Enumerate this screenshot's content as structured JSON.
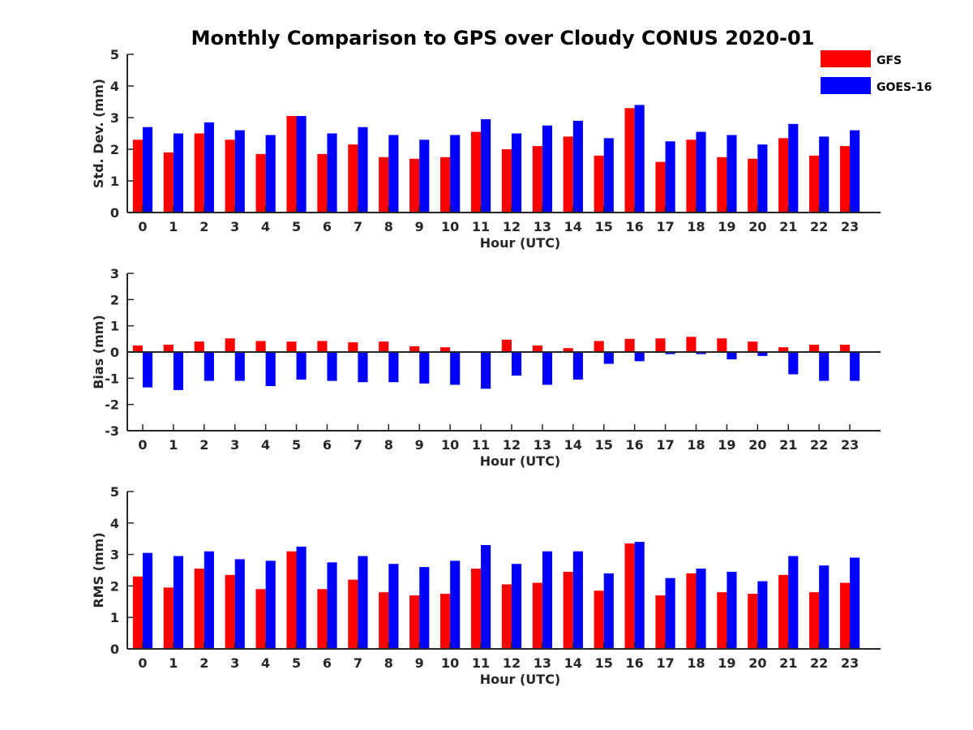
{
  "title": "Monthly Comparison to GPS over Cloudy CONUS 2020-01",
  "colors": {
    "GFS": "#ff0000",
    "GOES-16": "#0000ff",
    "axis": "#262626"
  },
  "legend": {
    "position": "top-right",
    "items": [
      "GFS",
      "GOES-16"
    ]
  },
  "chart_data": [
    {
      "type": "bar",
      "ylabel": "Std. Dev. (mm)",
      "xlabel": "Hour (UTC)",
      "ylim": [
        0,
        5
      ],
      "yticks": [
        0,
        1,
        2,
        3,
        4,
        5
      ],
      "categories": [
        "0",
        "1",
        "2",
        "3",
        "4",
        "5",
        "6",
        "7",
        "8",
        "9",
        "10",
        "11",
        "12",
        "13",
        "14",
        "15",
        "16",
        "17",
        "18",
        "19",
        "20",
        "21",
        "22",
        "23"
      ],
      "series": [
        {
          "name": "GFS",
          "values": [
            2.3,
            1.9,
            2.5,
            2.3,
            1.85,
            3.05,
            1.85,
            2.15,
            1.75,
            1.7,
            1.75,
            2.55,
            2.0,
            2.1,
            2.4,
            1.8,
            3.3,
            1.6,
            2.3,
            1.75,
            1.7,
            2.35,
            1.8,
            2.1
          ]
        },
        {
          "name": "GOES-16",
          "values": [
            2.7,
            2.5,
            2.85,
            2.6,
            2.45,
            3.05,
            2.5,
            2.7,
            2.45,
            2.3,
            2.45,
            2.95,
            2.5,
            2.75,
            2.9,
            2.35,
            3.4,
            2.25,
            2.55,
            2.45,
            2.15,
            2.8,
            2.4,
            2.6
          ]
        }
      ]
    },
    {
      "type": "bar",
      "ylabel": "Bias (mm)",
      "xlabel": "Hour (UTC)",
      "ylim": [
        -3,
        3
      ],
      "yticks": [
        -3,
        -2,
        -1,
        0,
        1,
        2,
        3
      ],
      "categories": [
        "0",
        "1",
        "2",
        "3",
        "4",
        "5",
        "6",
        "7",
        "8",
        "9",
        "10",
        "11",
        "12",
        "13",
        "14",
        "15",
        "16",
        "17",
        "18",
        "19",
        "20",
        "21",
        "22",
        "23"
      ],
      "series": [
        {
          "name": "GFS",
          "values": [
            0.25,
            0.28,
            0.4,
            0.52,
            0.42,
            0.4,
            0.42,
            0.37,
            0.4,
            0.22,
            0.18,
            0.03,
            0.47,
            0.25,
            0.15,
            0.42,
            0.5,
            0.52,
            0.58,
            0.52,
            0.4,
            0.18,
            0.28,
            0.28
          ]
        },
        {
          "name": "GOES-16",
          "values": [
            -1.35,
            -1.45,
            -1.1,
            -1.1,
            -1.3,
            -1.05,
            -1.1,
            -1.15,
            -1.15,
            -1.2,
            -1.25,
            -1.4,
            -0.9,
            -1.25,
            -1.05,
            -0.45,
            -0.35,
            -0.08,
            -0.08,
            -0.28,
            -0.15,
            -0.85,
            -1.1,
            -1.1
          ]
        }
      ]
    },
    {
      "type": "bar",
      "ylabel": "RMS (mm)",
      "xlabel": "Hour (UTC)",
      "ylim": [
        0,
        5
      ],
      "yticks": [
        0,
        1,
        2,
        3,
        4,
        5
      ],
      "categories": [
        "0",
        "1",
        "2",
        "3",
        "4",
        "5",
        "6",
        "7",
        "8",
        "9",
        "10",
        "11",
        "12",
        "13",
        "14",
        "15",
        "16",
        "17",
        "18",
        "19",
        "20",
        "21",
        "22",
        "23"
      ],
      "series": [
        {
          "name": "GFS",
          "values": [
            2.3,
            1.95,
            2.55,
            2.35,
            1.9,
            3.1,
            1.9,
            2.2,
            1.8,
            1.7,
            1.75,
            2.55,
            2.05,
            2.1,
            2.45,
            1.85,
            3.35,
            1.7,
            2.4,
            1.8,
            1.75,
            2.35,
            1.8,
            2.1
          ]
        },
        {
          "name": "GOES-16",
          "values": [
            3.05,
            2.95,
            3.1,
            2.85,
            2.8,
            3.25,
            2.75,
            2.95,
            2.7,
            2.6,
            2.8,
            3.3,
            2.7,
            3.1,
            3.1,
            2.4,
            3.4,
            2.25,
            2.55,
            2.45,
            2.15,
            2.95,
            2.65,
            2.9
          ]
        }
      ]
    }
  ]
}
